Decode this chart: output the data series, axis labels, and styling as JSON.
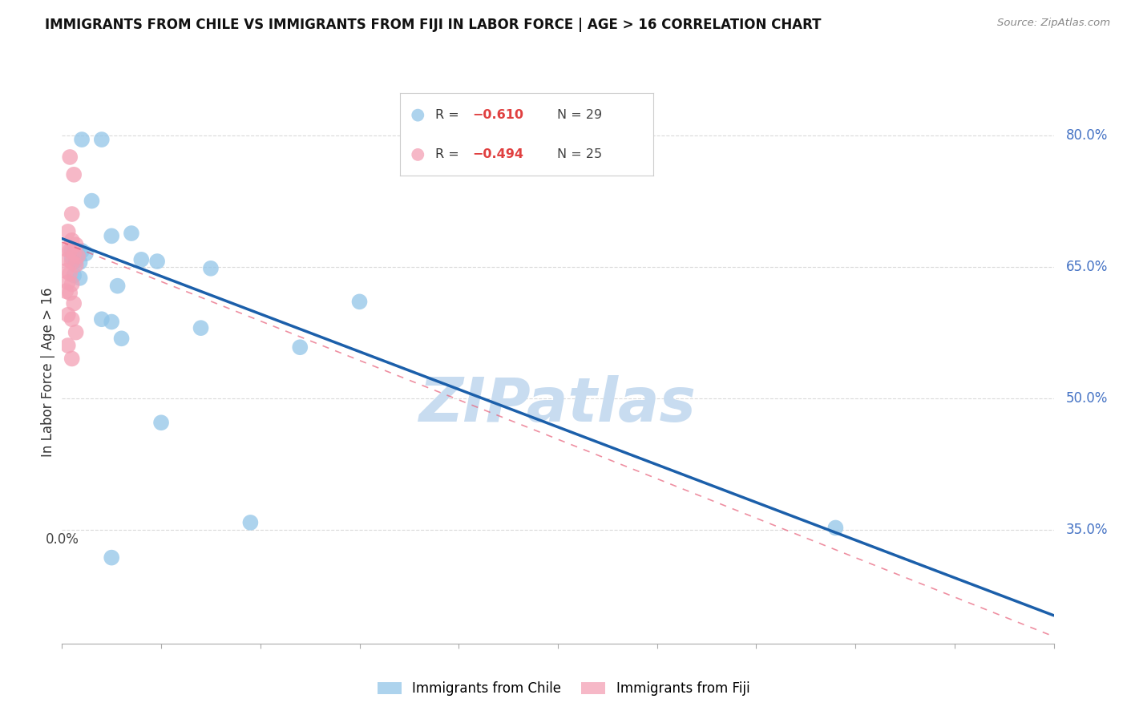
{
  "title": "IMMIGRANTS FROM CHILE VS IMMIGRANTS FROM FIJI IN LABOR FORCE | AGE > 16 CORRELATION CHART",
  "source": "Source: ZipAtlas.com",
  "ylabel": "In Labor Force | Age > 16",
  "xlim": [
    0.0,
    0.5
  ],
  "ylim": [
    0.22,
    0.84
  ],
  "yticks": [
    0.35,
    0.5,
    0.65,
    0.8
  ],
  "ytick_labels": [
    "35.0%",
    "50.0%",
    "65.0%",
    "80.0%"
  ],
  "xtick_positions": [
    0.0,
    0.05,
    0.1,
    0.15,
    0.2,
    0.25,
    0.3,
    0.35,
    0.4,
    0.45,
    0.5
  ],
  "chile_points": [
    [
      0.01,
      0.795
    ],
    [
      0.02,
      0.795
    ],
    [
      0.015,
      0.725
    ],
    [
      0.025,
      0.685
    ],
    [
      0.035,
      0.688
    ],
    [
      0.005,
      0.668
    ],
    [
      0.008,
      0.664
    ],
    [
      0.01,
      0.668
    ],
    [
      0.012,
      0.665
    ],
    [
      0.005,
      0.66
    ],
    [
      0.007,
      0.657
    ],
    [
      0.009,
      0.655
    ],
    [
      0.04,
      0.658
    ],
    [
      0.048,
      0.656
    ],
    [
      0.075,
      0.648
    ],
    [
      0.006,
      0.64
    ],
    [
      0.009,
      0.637
    ],
    [
      0.028,
      0.628
    ],
    [
      0.15,
      0.61
    ],
    [
      0.02,
      0.59
    ],
    [
      0.025,
      0.587
    ],
    [
      0.07,
      0.58
    ],
    [
      0.03,
      0.568
    ],
    [
      0.12,
      0.558
    ],
    [
      0.05,
      0.472
    ],
    [
      0.095,
      0.358
    ],
    [
      0.025,
      0.318
    ],
    [
      0.39,
      0.352
    ]
  ],
  "fiji_points": [
    [
      0.004,
      0.775
    ],
    [
      0.006,
      0.755
    ],
    [
      0.005,
      0.71
    ],
    [
      0.003,
      0.69
    ],
    [
      0.005,
      0.68
    ],
    [
      0.007,
      0.675
    ],
    [
      0.002,
      0.67
    ],
    [
      0.004,
      0.668
    ],
    [
      0.006,
      0.665
    ],
    [
      0.008,
      0.662
    ],
    [
      0.003,
      0.658
    ],
    [
      0.005,
      0.655
    ],
    [
      0.007,
      0.652
    ],
    [
      0.002,
      0.645
    ],
    [
      0.004,
      0.642
    ],
    [
      0.003,
      0.632
    ],
    [
      0.005,
      0.63
    ],
    [
      0.002,
      0.622
    ],
    [
      0.004,
      0.62
    ],
    [
      0.006,
      0.608
    ],
    [
      0.003,
      0.595
    ],
    [
      0.005,
      0.59
    ],
    [
      0.007,
      0.575
    ],
    [
      0.003,
      0.56
    ],
    [
      0.005,
      0.545
    ]
  ],
  "chile_color": "#92C5E8",
  "fiji_color": "#F4A0B5",
  "chile_line_color": "#1B5FAA",
  "fiji_line_color": "#E8607A",
  "grid_color": "#DADADA",
  "background_color": "#FFFFFF",
  "chile_trend_x": [
    0.0,
    0.5
  ],
  "chile_trend_y": [
    0.682,
    0.252
  ],
  "fiji_trend_x": [
    0.0,
    0.5
  ],
  "fiji_trend_y": [
    0.678,
    0.228
  ],
  "watermark_text": "ZIPatlas",
  "watermark_color": "#C8DCF0",
  "watermark_fontsize": 55
}
